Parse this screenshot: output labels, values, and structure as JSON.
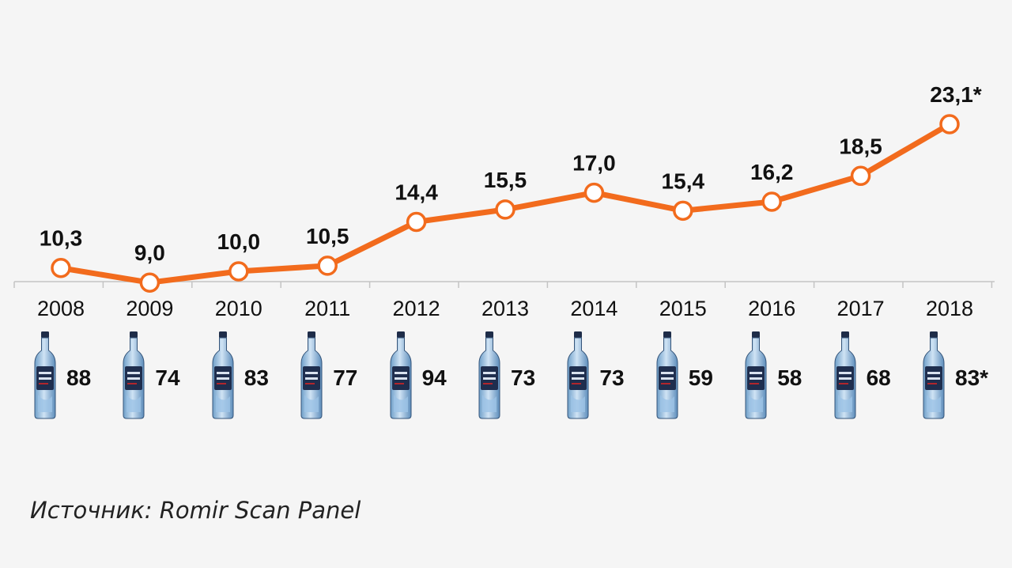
{
  "chart_data": {
    "type": "line",
    "title": "",
    "xlabel": "",
    "ylabel": "",
    "x": [
      "2008",
      "2009",
      "2010",
      "2011",
      "2012",
      "2013",
      "2014",
      "2015",
      "2016",
      "2017",
      "2018"
    ],
    "series": [
      {
        "values": [
          10.3,
          9.0,
          10.0,
          10.5,
          14.4,
          15.5,
          17.0,
          15.4,
          16.2,
          18.5,
          23.1
        ],
        "labels": [
          "10,3",
          "9,0",
          "10,0",
          "10,5",
          "14,4",
          "15,5",
          "17,0",
          "15,4",
          "16,2",
          "18,5",
          "23,1*"
        ]
      }
    ],
    "secondary_row": {
      "icon": "vodka-bottle-icon",
      "values": [
        88,
        74,
        83,
        77,
        94,
        73,
        73,
        59,
        58,
        68,
        83
      ],
      "labels": [
        "88",
        "74",
        "83",
        "77",
        "94",
        "73",
        "73",
        "59",
        "58",
        "68",
        "83*"
      ]
    },
    "grid": false,
    "legend": "none",
    "colors": {
      "line": "#f26b1d",
      "marker_fill": "#ffffff",
      "text": "#111111",
      "axis": "#bbbbbb"
    }
  },
  "source": "Источник: Romir Scan Panel"
}
